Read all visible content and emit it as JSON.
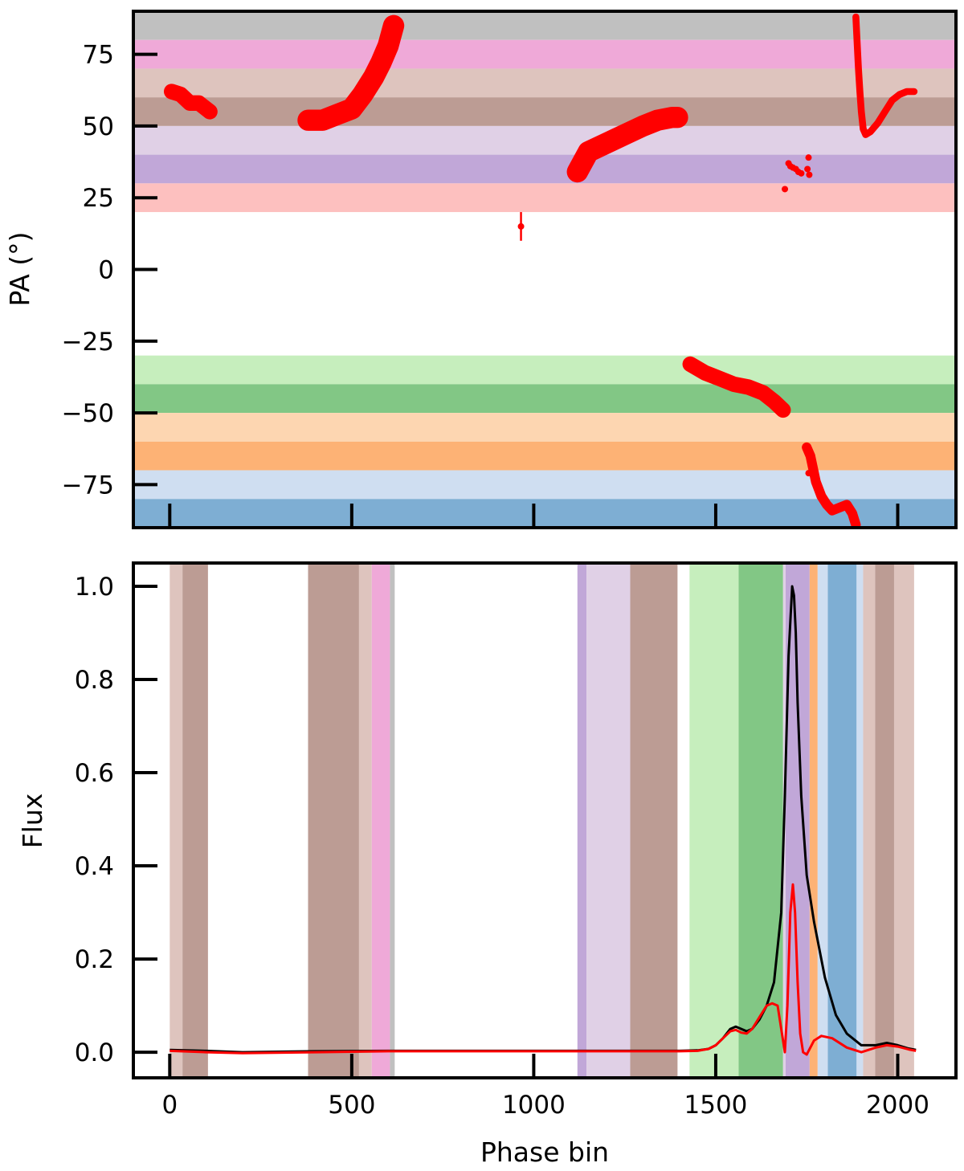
{
  "chart_data": [
    {
      "type": "scatter",
      "ylabel": "PA (°)",
      "xlim": [
        -100,
        2160
      ],
      "ylim": [
        -90,
        90
      ],
      "xticks": [
        0,
        500,
        1000,
        1500,
        2000
      ],
      "yticks": [
        75,
        50,
        25,
        0,
        -25,
        -50,
        -75
      ],
      "ytick_labels": [
        "75",
        "50",
        "25",
        "0",
        "−25",
        "−50",
        "−75"
      ],
      "show_x_tick_labels": false,
      "grid": false,
      "bands": [
        {
          "from": 80,
          "to": 90,
          "color": "#c0c0c0"
        },
        {
          "from": 70,
          "to": 80,
          "color": "#efa9d8"
        },
        {
          "from": 60,
          "to": 70,
          "color": "#dec4be"
        },
        {
          "from": 50,
          "to": 60,
          "color": "#bc9c94"
        },
        {
          "from": 40,
          "to": 50,
          "color": "#e0d0e6"
        },
        {
          "from": 30,
          "to": 40,
          "color": "#c1a7d8"
        },
        {
          "from": 20,
          "to": 30,
          "color": "#fdc0bf"
        },
        {
          "from": -40,
          "to": -30,
          "color": "#c6eebd"
        },
        {
          "from": -50,
          "to": -40,
          "color": "#82c785"
        },
        {
          "from": -60,
          "to": -50,
          "color": "#fdd6b1"
        },
        {
          "from": -70,
          "to": -60,
          "color": "#fdb275"
        },
        {
          "from": -80,
          "to": -70,
          "color": "#cfdef1"
        },
        {
          "from": -90,
          "to": -80,
          "color": "#7eaed3"
        }
      ],
      "series": [
        {
          "color": "#ff0000",
          "segments": [
            {
              "x": [
                5,
                30,
                55,
                80,
                110
              ],
              "y": [
                62,
                61,
                58,
                58,
                55
              ],
              "err": 2
            },
            {
              "x": [
                380,
                420,
                460,
                500,
                530,
                560,
                580,
                600,
                615
              ],
              "y": [
                52,
                52,
                54,
                56,
                61,
                67,
                72,
                78,
                85
              ],
              "err": 3
            },
            {
              "x": [
                1120,
                1150,
                1200,
                1250,
                1300,
                1340,
                1380,
                1395
              ],
              "y": [
                34,
                41,
                44,
                47,
                50,
                52,
                53,
                53
              ],
              "err": 3
            },
            {
              "x": [
                1430,
                1470,
                1510,
                1550,
                1590,
                1630,
                1660,
                1685
              ],
              "y": [
                -33,
                -36,
                -38,
                -40,
                -41,
                -43,
                -46,
                -49
              ],
              "err": 2
            },
            {
              "x": [
                1750,
                1760,
                1775,
                1790,
                1805,
                1820,
                1840,
                1860,
                1875,
                1885
              ],
              "y": [
                -62,
                -65,
                -74,
                -79,
                -82,
                -84,
                -83,
                -82,
                -85,
                -89
              ],
              "err": 1
            },
            {
              "x": [
                1885,
                1888,
                1892,
                1896,
                1900,
                1905,
                1912,
                1925,
                1945,
                1965,
                1985,
                2005,
                2025,
                2045
              ],
              "y": [
                88,
                80,
                70,
                62,
                55,
                49,
                47,
                48,
                51,
                55,
                59,
                61,
                62,
                62
              ],
              "err": 0.5
            }
          ],
          "points": [
            {
              "x": 965,
              "y": 15,
              "err": 5
            },
            {
              "x": 1690,
              "y": 28,
              "err": 0
            },
            {
              "x": 1700,
              "y": 37,
              "err": 0
            },
            {
              "x": 1705,
              "y": 36,
              "err": 0
            },
            {
              "x": 1712,
              "y": 35.5,
              "err": 0
            },
            {
              "x": 1720,
              "y": 35,
              "err": 0
            },
            {
              "x": 1727,
              "y": 34,
              "err": 0
            },
            {
              "x": 1735,
              "y": 33.5,
              "err": 0
            },
            {
              "x": 1755,
              "y": 39,
              "err": 0
            },
            {
              "x": 1752,
              "y": 35,
              "err": 0
            },
            {
              "x": 1757,
              "y": 33,
              "err": 0
            },
            {
              "x": 1755,
              "y": -71,
              "err": 0
            }
          ]
        }
      ]
    },
    {
      "type": "line",
      "xlabel": "Phase bin",
      "ylabel": "Flux",
      "xlim": [
        -100,
        2160
      ],
      "ylim": [
        -0.055,
        1.05
      ],
      "xticks": [
        0,
        500,
        1000,
        1500,
        2000
      ],
      "xtick_labels": [
        "0",
        "500",
        "1000",
        "1500",
        "2000"
      ],
      "yticks": [
        0.0,
        0.2,
        0.4,
        0.6,
        0.8,
        1.0
      ],
      "ytick_labels": [
        "0.0",
        "0.2",
        "0.4",
        "0.6",
        "0.8",
        "1.0"
      ],
      "grid": false,
      "vbands": [
        {
          "from": 0,
          "to": 35,
          "color": "#dec4be"
        },
        {
          "from": 35,
          "to": 105,
          "color": "#bc9c94"
        },
        {
          "from": 380,
          "to": 520,
          "color": "#bc9c94"
        },
        {
          "from": 520,
          "to": 555,
          "color": "#dec4be"
        },
        {
          "from": 555,
          "to": 605,
          "color": "#efa9d8"
        },
        {
          "from": 605,
          "to": 618,
          "color": "#c0c0c0"
        },
        {
          "from": 1120,
          "to": 1145,
          "color": "#c1a7d8"
        },
        {
          "from": 1145,
          "to": 1265,
          "color": "#e0d0e6"
        },
        {
          "from": 1265,
          "to": 1395,
          "color": "#bc9c94"
        },
        {
          "from": 1428,
          "to": 1563,
          "color": "#c6eebd"
        },
        {
          "from": 1563,
          "to": 1685,
          "color": "#82c785"
        },
        {
          "from": 1685,
          "to": 1692,
          "color": "#e0d0e6"
        },
        {
          "from": 1692,
          "to": 1758,
          "color": "#c1a7d8"
        },
        {
          "from": 1758,
          "to": 1780,
          "color": "#fdb275"
        },
        {
          "from": 1780,
          "to": 1808,
          "color": "#cfdef1"
        },
        {
          "from": 1808,
          "to": 1887,
          "color": "#7eaed3"
        },
        {
          "from": 1887,
          "to": 1905,
          "color": "#cfdef1"
        },
        {
          "from": 1905,
          "to": 1938,
          "color": "#dec4be"
        },
        {
          "from": 1938,
          "to": 1990,
          "color": "#bc9c94"
        },
        {
          "from": 1990,
          "to": 2045,
          "color": "#dec4be"
        }
      ],
      "series": [
        {
          "color": "#000000",
          "x": [
            0,
            100,
            200,
            400,
            600,
            800,
            1000,
            1200,
            1400,
            1450,
            1480,
            1500,
            1520,
            1540,
            1555,
            1570,
            1585,
            1600,
            1620,
            1640,
            1660,
            1680,
            1690,
            1700,
            1710,
            1715,
            1720,
            1725,
            1735,
            1750,
            1770,
            1800,
            1830,
            1860,
            1900,
            1940,
            1970,
            2000,
            2030,
            2050
          ],
          "y": [
            0.005,
            0.003,
            0.0,
            0.002,
            0.003,
            0.003,
            0.003,
            0.003,
            0.003,
            0.004,
            0.007,
            0.015,
            0.03,
            0.05,
            0.055,
            0.05,
            0.045,
            0.05,
            0.07,
            0.1,
            0.15,
            0.3,
            0.55,
            0.85,
            1.0,
            0.98,
            0.9,
            0.75,
            0.55,
            0.38,
            0.28,
            0.16,
            0.08,
            0.04,
            0.015,
            0.015,
            0.02,
            0.015,
            0.008,
            0.005
          ]
        },
        {
          "color": "#ff0000",
          "x": [
            0,
            100,
            200,
            400,
            600,
            800,
            1000,
            1200,
            1400,
            1450,
            1480,
            1500,
            1520,
            1540,
            1555,
            1570,
            1585,
            1600,
            1620,
            1640,
            1655,
            1670,
            1680,
            1690,
            1697,
            1705,
            1712,
            1718,
            1725,
            1732,
            1740,
            1750,
            1770,
            1790,
            1820,
            1860,
            1900,
            1940,
            1970,
            2000,
            2030,
            2050
          ],
          "y": [
            0.003,
            0.0,
            -0.002,
            0.0,
            0.002,
            0.002,
            0.002,
            0.002,
            0.002,
            0.003,
            0.007,
            0.015,
            0.03,
            0.045,
            0.048,
            0.042,
            0.04,
            0.05,
            0.075,
            0.1,
            0.105,
            0.1,
            0.05,
            0.0,
            0.1,
            0.3,
            0.36,
            0.3,
            0.15,
            0.04,
            0.0,
            -0.005,
            0.025,
            0.035,
            0.03,
            0.01,
            0.0,
            0.01,
            0.015,
            0.012,
            0.006,
            0.003
          ]
        }
      ]
    }
  ]
}
